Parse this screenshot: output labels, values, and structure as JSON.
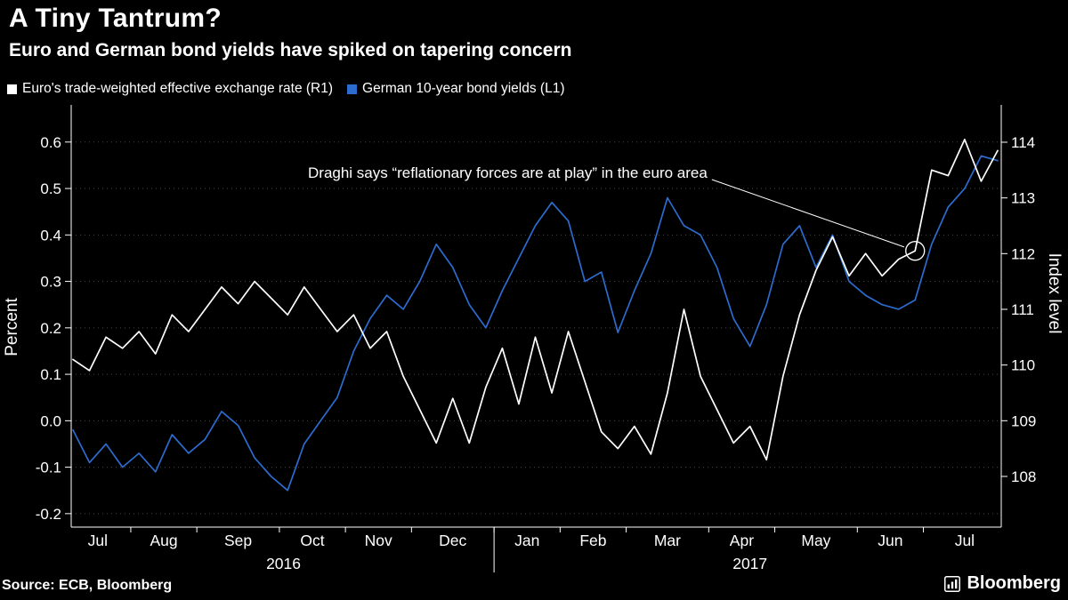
{
  "colors": {
    "background": "#000000",
    "text": "#ffffff",
    "axis": "#ffffff",
    "grid": "#474747",
    "white_series": "#ffffff",
    "blue_series": "#2d6bce"
  },
  "header": {
    "title": "A Tiny Tantrum?",
    "subtitle": "Euro and German bond yields have spiked on tapering concern"
  },
  "footer": {
    "source": "Source: ECB, Bloomberg",
    "brand": "Bloomberg"
  },
  "chart_data": {
    "type": "line",
    "title": "A Tiny Tantrum?",
    "subtitle": "Euro and German bond yields have spiked on tapering concern",
    "left_axis": {
      "label": "Percent",
      "ticks": [
        "0.6",
        "0.5",
        "0.4",
        "0.3",
        "0.2",
        "0.1",
        "0.0",
        "-0.1",
        "-0.2"
      ],
      "min": -0.229,
      "max": 0.68
    },
    "right_axis": {
      "label": "Index level",
      "ticks": [
        "114",
        "113",
        "112",
        "111",
        "110",
        "109",
        "108"
      ],
      "min": 107.09,
      "max": 114.67
    },
    "x_axis": {
      "month_labels": [
        {
          "label": "Jul",
          "center": 1.5
        },
        {
          "label": "Aug",
          "center": 5.5
        },
        {
          "label": "Sep",
          "center": 10
        },
        {
          "label": "Oct",
          "center": 14.5
        },
        {
          "label": "Nov",
          "center": 18.5
        },
        {
          "label": "Dec",
          "center": 23
        },
        {
          "label": "Jan",
          "center": 27.5
        },
        {
          "label": "Feb",
          "center": 31.5
        },
        {
          "label": "Mar",
          "center": 36
        },
        {
          "label": "Apr",
          "center": 40.5
        },
        {
          "label": "May",
          "center": 45
        },
        {
          "label": "Jun",
          "center": 49.5
        },
        {
          "label": "Jul",
          "center": 54
        }
      ],
      "month_boundaries": [
        3.5,
        7.5,
        12.5,
        16.5,
        20.5,
        25.5,
        29.5,
        33.5,
        38.5,
        42.5,
        47.5,
        51.5
      ],
      "year_labels": [
        {
          "label": "2016",
          "center": 12.75
        },
        {
          "label": "2017",
          "center": 41
        }
      ],
      "year_separator": 25.5
    },
    "series": [
      {
        "name": "Euro's trade-weighted effective exchange rate (R1)",
        "axis": "right",
        "color": "#ffffff",
        "values": [
          110.1,
          109.9,
          110.5,
          110.3,
          110.6,
          110.2,
          110.9,
          110.6,
          111.0,
          111.4,
          111.1,
          111.5,
          111.2,
          110.9,
          111.4,
          111.0,
          110.6,
          110.9,
          110.3,
          110.6,
          109.8,
          109.2,
          108.6,
          109.4,
          108.6,
          109.6,
          110.3,
          109.3,
          110.5,
          109.5,
          110.6,
          109.7,
          108.8,
          108.5,
          108.9,
          108.4,
          109.5,
          111.0,
          109.8,
          109.2,
          108.6,
          108.9,
          108.3,
          109.8,
          110.9,
          111.7,
          112.3,
          111.6,
          112.0,
          111.6,
          111.9,
          112.05,
          113.5,
          113.4,
          114.05,
          113.3,
          113.85
        ]
      },
      {
        "name": "German 10-year bond yields (L1)",
        "axis": "left",
        "color": "#2d6bce",
        "values": [
          -0.02,
          -0.09,
          -0.05,
          -0.1,
          -0.07,
          -0.11,
          -0.03,
          -0.07,
          -0.04,
          0.02,
          -0.01,
          -0.08,
          -0.12,
          -0.15,
          -0.05,
          0.0,
          0.05,
          0.15,
          0.22,
          0.27,
          0.24,
          0.3,
          0.38,
          0.33,
          0.25,
          0.2,
          0.28,
          0.35,
          0.42,
          0.47,
          0.43,
          0.3,
          0.32,
          0.19,
          0.28,
          0.36,
          0.48,
          0.42,
          0.4,
          0.33,
          0.22,
          0.16,
          0.25,
          0.38,
          0.42,
          0.33,
          0.4,
          0.3,
          0.27,
          0.25,
          0.24,
          0.26,
          0.38,
          0.46,
          0.5,
          0.57,
          0.56
        ]
      }
    ],
    "annotation": {
      "text": "Draghi says “reflationary forces are at play” in the euro area",
      "series_index": 0,
      "point_index": 51
    }
  }
}
